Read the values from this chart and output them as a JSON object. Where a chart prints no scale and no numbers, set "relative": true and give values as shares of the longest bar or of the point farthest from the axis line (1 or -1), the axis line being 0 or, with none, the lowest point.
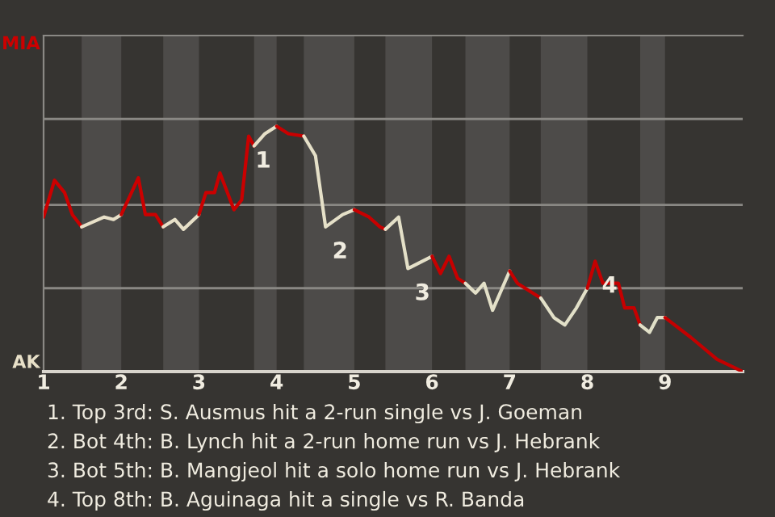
{
  "chart_data": {
    "type": "line",
    "relative": true,
    "xlim": [
      1,
      10
    ],
    "xticks": [
      1,
      2,
      3,
      4,
      5,
      6,
      7,
      8,
      9
    ],
    "ref_lines": [
      {
        "axis": "y",
        "value": 0.34,
        "color": "#8a8884"
      },
      {
        "axis": "y",
        "value": 0.68,
        "color": "#8a8884"
      },
      {
        "axis": "y",
        "value": 1.03,
        "color": "#8a8884"
      }
    ],
    "bands": [
      {
        "axis": "x",
        "from": 1.49,
        "to": 2,
        "color": "#4d4b49"
      },
      {
        "axis": "x",
        "from": 2.54,
        "to": 3,
        "color": "#4d4b49"
      },
      {
        "axis": "x",
        "from": 3.71,
        "to": 4,
        "color": "#4d4b49"
      },
      {
        "axis": "x",
        "from": 4.35,
        "to": 5,
        "color": "#4d4b49"
      },
      {
        "axis": "x",
        "from": 5.4,
        "to": 6,
        "color": "#4d4b49"
      },
      {
        "axis": "x",
        "from": 6.43,
        "to": 7,
        "color": "#4d4b49"
      },
      {
        "axis": "x",
        "from": 7.4,
        "to": 8,
        "color": "#4d4b49"
      },
      {
        "axis": "x",
        "from": 8.68,
        "to": 9,
        "color": "#4d4b49"
      }
    ],
    "series": [
      {
        "name": "MIA",
        "color": "#cc0000",
        "x": [
          1.0,
          1.14,
          1.27,
          1.37,
          1.49
        ],
        "values": [
          0.63,
          0.78,
          0.73,
          0.64,
          0.59
        ]
      },
      {
        "name": "AK",
        "color": "#e8e0c8",
        "x": [
          1.49,
          1.78,
          1.9,
          2.0
        ],
        "values": [
          0.59,
          0.63,
          0.62,
          0.64
        ]
      },
      {
        "color": "#cb0000",
        "x": [
          2.0,
          2.22,
          2.31,
          2.44,
          2.54
        ],
        "values": [
          0.64,
          0.79,
          0.64,
          0.64,
          0.59
        ]
      },
      {
        "color": "#e7e0c8",
        "x": [
          2.54,
          2.69,
          2.8,
          3.0
        ],
        "values": [
          0.59,
          0.62,
          0.58,
          0.64
        ]
      },
      {
        "color": "#ca0000",
        "x": [
          3.0,
          3.09,
          3.2,
          3.27,
          3.45,
          3.55,
          3.64,
          3.71
        ],
        "values": [
          0.64,
          0.73,
          0.73,
          0.81,
          0.66,
          0.7,
          0.96,
          0.92
        ]
      },
      {
        "color": "#e6e0c8",
        "x": [
          3.71,
          3.85,
          4.0
        ],
        "values": [
          0.92,
          0.97,
          1
        ]
      },
      {
        "color": "#c90000",
        "x": [
          4.0,
          4.15,
          4.35
        ],
        "values": [
          1,
          0.97,
          0.96
        ]
      },
      {
        "color": "#e5e0c8",
        "x": [
          4.35,
          4.5,
          4.63,
          4.85,
          5.0
        ],
        "values": [
          0.96,
          0.88,
          0.59,
          0.64,
          0.66
        ]
      },
      {
        "color": "#c80000",
        "x": [
          5.0,
          5.19,
          5.33,
          5.4
        ],
        "values": [
          0.66,
          0.63,
          0.59,
          0.58
        ]
      },
      {
        "color": "#e4e0c8",
        "x": [
          5.4,
          5.57,
          5.69,
          6.0
        ],
        "values": [
          0.58,
          0.63,
          0.42,
          0.47
        ]
      },
      {
        "color": "#c70000",
        "x": [
          6.0,
          6.11,
          6.22,
          6.33,
          6.43
        ],
        "values": [
          0.47,
          0.4,
          0.47,
          0.38,
          0.36
        ]
      },
      {
        "color": "#e3e0c8",
        "x": [
          6.43,
          6.56,
          6.67,
          6.78,
          7.0
        ],
        "values": [
          0.36,
          0.32,
          0.36,
          0.25,
          0.41
        ]
      },
      {
        "color": "#c60000",
        "x": [
          7.0,
          7.1,
          7.4
        ],
        "values": [
          0.41,
          0.36,
          0.3
        ]
      },
      {
        "color": "#e2e0c8",
        "x": [
          7.4,
          7.57,
          7.71,
          7.86,
          8.0
        ],
        "values": [
          0.3,
          0.22,
          0.19,
          0.26,
          0.34
        ]
      },
      {
        "color": "#c50000",
        "x": [
          8.0,
          8.1,
          8.2,
          8.4,
          8.48,
          8.6,
          8.68
        ],
        "values": [
          0.34,
          0.45,
          0.36,
          0.36,
          0.26,
          0.26,
          0.19
        ]
      },
      {
        "color": "#e1e0c8",
        "x": [
          8.68,
          8.8,
          8.9,
          9.0
        ],
        "values": [
          0.19,
          0.16,
          0.22,
          0.22
        ]
      },
      {
        "color": "#c40000",
        "x": [
          9.0,
          9.33,
          9.67,
          10.0
        ],
        "values": [
          0.22,
          0.14,
          0.05,
          0
        ]
      }
    ],
    "annotations": [
      {
        "text": "1",
        "x": 3.64,
        "y": 0.96
      },
      {
        "text": "2",
        "x": 4.63,
        "y": 0.59
      },
      {
        "text": "3",
        "x": 5.69,
        "y": 0.42
      },
      {
        "text": "4",
        "x": 8.1,
        "y": 0.45
      },
      "1. Top 3rd: S. Ausmus hit a 2-run single vs J. Goeman",
      "2. Bot 4th: B. Lynch hit a 2-run home run vs J. Hebrank",
      "3. Bot 5th: B. Mangjeol hit a solo home run vs J. Hebrank",
      "4. Top 8th: B. Aguinaga hit a single vs R. Banda"
    ]
  }
}
